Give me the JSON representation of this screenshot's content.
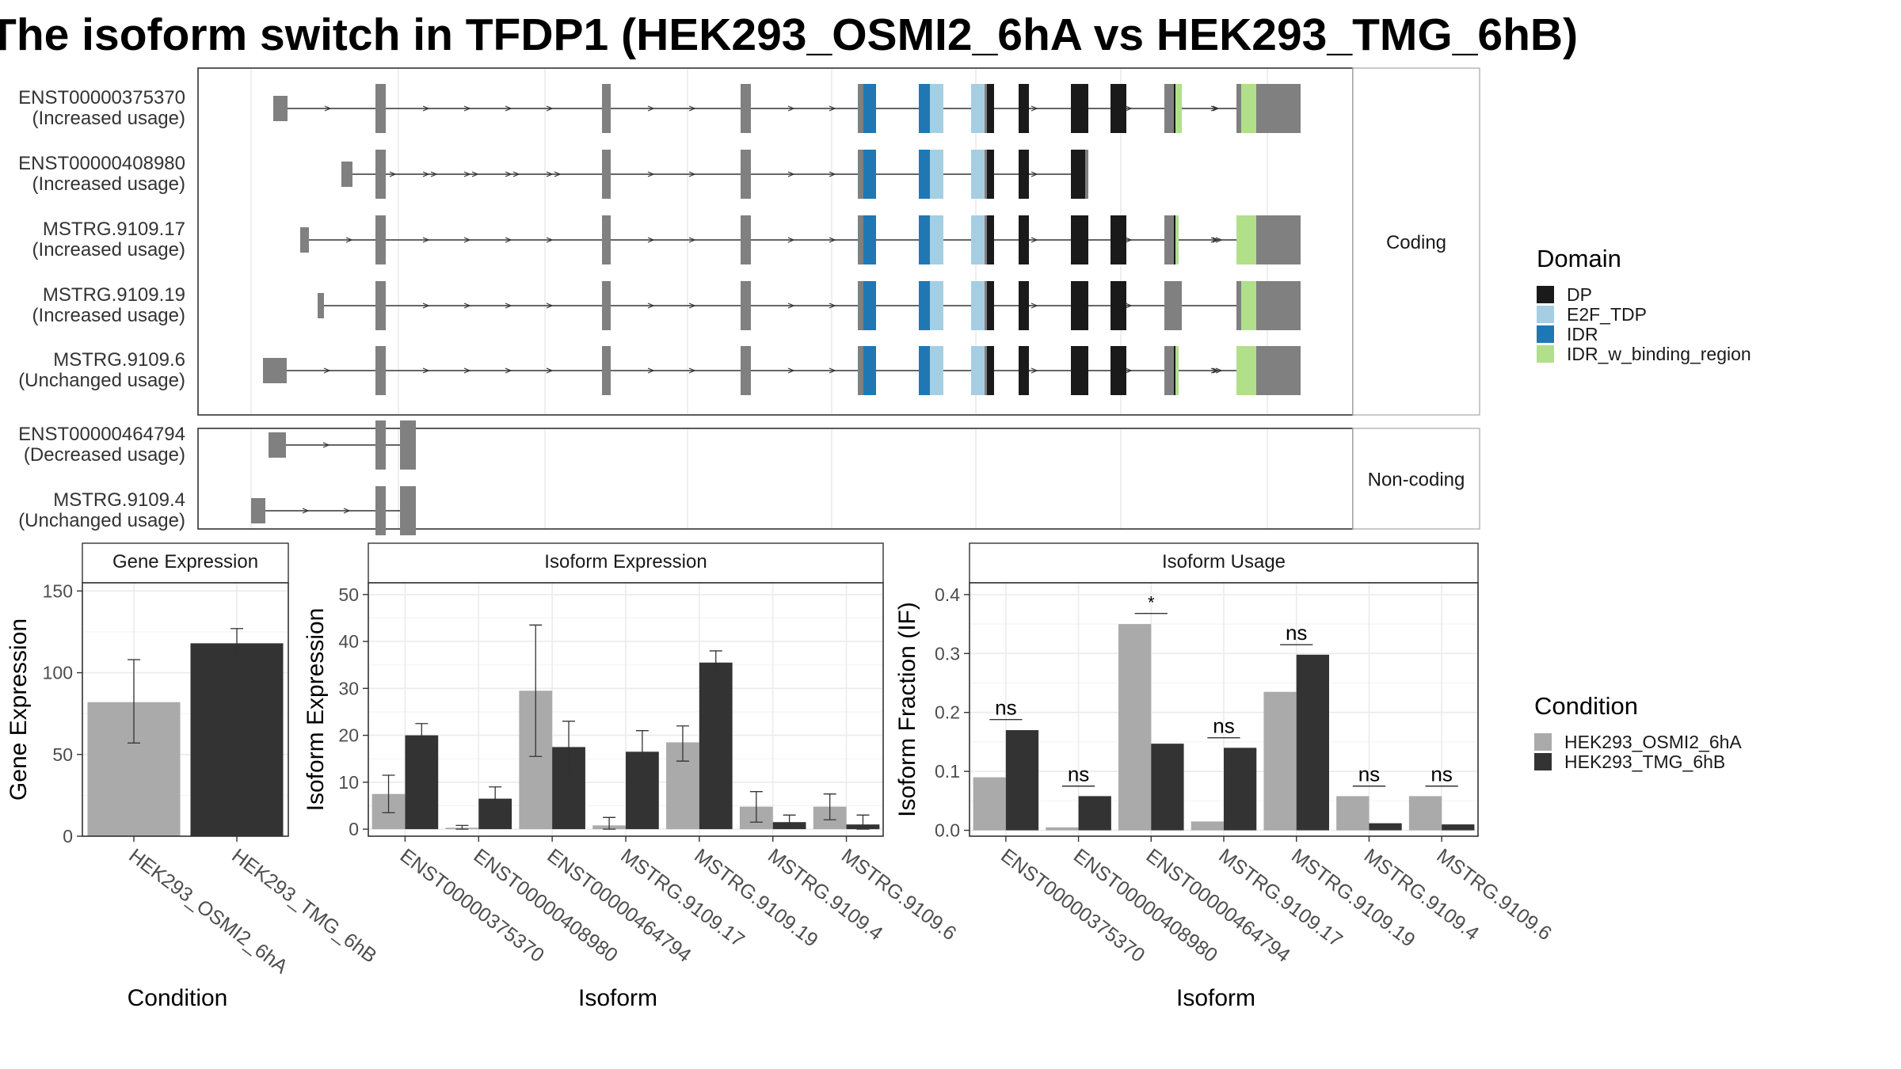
{
  "title": "The isoform switch in TFDP1 (HEK293_OSMI2_6hA vs HEK293_TMG_6hB)",
  "colors": {
    "cond_a": "#aaaaaa",
    "cond_b": "#333333",
    "exon": "#808080",
    "DP": "#1a1a1a",
    "E2F_TDP": "#a6cee3",
    "IDR": "#1f78b4",
    "IDR_w_binding_region": "#b2df8a"
  },
  "legend_domain": {
    "title": "Domain",
    "items": [
      {
        "label": "DP",
        "key": "DP"
      },
      {
        "label": "E2F_TDP",
        "key": "E2F_TDP"
      },
      {
        "label": "IDR",
        "key": "IDR"
      },
      {
        "label": "IDR_w_binding_region",
        "key": "IDR_w_binding_region"
      }
    ]
  },
  "legend_condition": {
    "title": "Condition",
    "items": [
      {
        "label": "HEK293_OSMI2_6hA",
        "key": "cond_a"
      },
      {
        "label": "HEK293_TMG_6hB",
        "key": "cond_b"
      }
    ]
  },
  "structure": {
    "groups": [
      {
        "strip": "Coding",
        "isoforms": [
          {
            "id": "ENST00000375370",
            "usage": "(Increased usage)"
          },
          {
            "id": "ENST00000408980",
            "usage": "(Increased usage)"
          },
          {
            "id": "MSTRG.9109.17",
            "usage": "(Increased usage)"
          },
          {
            "id": "MSTRG.9109.19",
            "usage": "(Increased usage)"
          },
          {
            "id": "MSTRG.9109.6",
            "usage": "(Unchanged usage)"
          }
        ]
      },
      {
        "strip": "Non-coding",
        "isoforms": [
          {
            "id": "ENST00000464794",
            "usage": "(Decreased usage)"
          },
          {
            "id": "MSTRG.9109.4",
            "usage": "(Unchanged usage)"
          }
        ]
      }
    ]
  },
  "chart_data": [
    {
      "type": "bar",
      "title": "Gene Expression",
      "xlabel": "Condition",
      "ylabel": "Gene Expression",
      "ylim": [
        0,
        155
      ],
      "yticks": [
        0,
        50,
        100,
        150
      ],
      "categories": [
        "HEK293_OSMI2_6hA",
        "HEK293_TMG_6hB"
      ],
      "values": [
        82,
        118
      ],
      "err_low": [
        57,
        109
      ],
      "err_high": [
        108,
        127
      ]
    },
    {
      "type": "bar",
      "title": "Isoform Expression",
      "xlabel": "Isoform",
      "ylabel": "Isoform Expression",
      "ylim": [
        -1.5,
        52.5
      ],
      "yticks": [
        0,
        10,
        20,
        30,
        40,
        50
      ],
      "categories": [
        "ENST00000375370",
        "ENST00000408980",
        "ENST00000464794",
        "MSTRG.9109.17",
        "MSTRG.9109.19",
        "MSTRG.9109.4",
        "MSTRG.9109.6"
      ],
      "series": [
        {
          "name": "HEK293_OSMI2_6hA",
          "values": [
            7.5,
            0.3,
            29.5,
            0.8,
            18.5,
            4.8,
            4.8
          ],
          "err_low": [
            3.5,
            0.0,
            15.5,
            0.0,
            14.5,
            1.5,
            2.0
          ],
          "err_high": [
            11.5,
            0.8,
            43.5,
            2.5,
            22.0,
            8.0,
            7.5
          ]
        },
        {
          "name": "HEK293_TMG_6hB",
          "values": [
            20.0,
            6.5,
            17.5,
            16.5,
            35.5,
            1.5,
            1.0
          ],
          "err_low": [
            17.5,
            4.0,
            11.5,
            12.5,
            33.0,
            0.5,
            0.0
          ],
          "err_high": [
            22.5,
            9.0,
            23.0,
            21.0,
            38.0,
            3.0,
            3.0
          ]
        }
      ]
    },
    {
      "type": "bar",
      "title": "Isoform Usage",
      "xlabel": "Isoform",
      "ylabel": "Isoform Fraction (IF)",
      "ylim": [
        -0.01,
        0.42
      ],
      "yticks": [
        0.0,
        0.1,
        0.2,
        0.3,
        0.4
      ],
      "categories": [
        "ENST00000375370",
        "ENST00000408980",
        "ENST00000464794",
        "MSTRG.9109.17",
        "MSTRG.9109.19",
        "MSTRG.9109.4",
        "MSTRG.9109.6"
      ],
      "series": [
        {
          "name": "HEK293_OSMI2_6hA",
          "values": [
            0.09,
            0.005,
            0.35,
            0.015,
            0.235,
            0.058,
            0.058
          ]
        },
        {
          "name": "HEK293_TMG_6hB",
          "values": [
            0.17,
            0.058,
            0.147,
            0.14,
            0.298,
            0.012,
            0.01
          ]
        }
      ],
      "significance": [
        "ns",
        "ns",
        "*",
        "ns",
        "ns",
        "ns",
        "ns"
      ],
      "significance_y": [
        0.188,
        0.075,
        0.368,
        0.157,
        0.315,
        0.075,
        0.075
      ]
    }
  ]
}
